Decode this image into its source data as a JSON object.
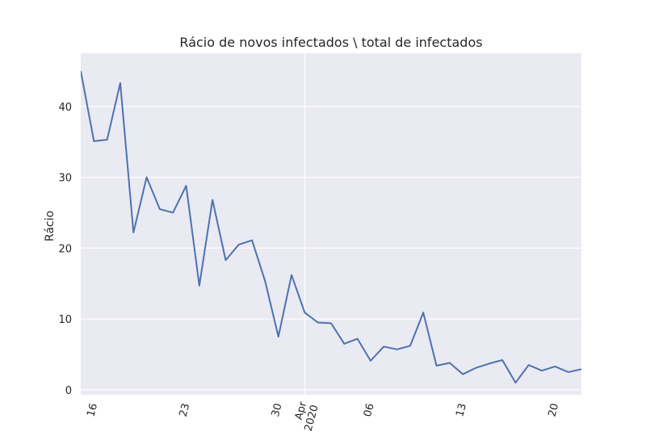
{
  "chart_data": {
    "type": "line",
    "title": "Rácio de novos infectados \\ total de infectados",
    "xlabel": "",
    "ylabel": "Rácio",
    "ylim": [
      -0.7,
      47.5
    ],
    "xlim": [
      "2020-03-15",
      "2020-04-22"
    ],
    "yticks": [
      0,
      10,
      20,
      30,
      40
    ],
    "xticks": [
      {
        "date": "2020-03-16",
        "label": "16"
      },
      {
        "date": "2020-03-23",
        "label": "23"
      },
      {
        "date": "2020-03-30",
        "label": "30"
      },
      {
        "date": "2020-04-01",
        "label": "Apr",
        "label2": "2020"
      },
      {
        "date": "2020-04-06",
        "label": "06"
      },
      {
        "date": "2020-04-13",
        "label": "13"
      },
      {
        "date": "2020-04-20",
        "label": "20"
      }
    ],
    "grid": true,
    "colors": {
      "background": "#eaeaf2",
      "grid": "#ffffff",
      "line": "#4c72b0"
    },
    "series": [
      {
        "name": "",
        "points": [
          {
            "x": "2020-03-15",
            "y": 45.0
          },
          {
            "x": "2020-03-16",
            "y": 35.1
          },
          {
            "x": "2020-03-17",
            "y": 35.3
          },
          {
            "x": "2020-03-18",
            "y": 43.3
          },
          {
            "x": "2020-03-19",
            "y": 22.2
          },
          {
            "x": "2020-03-20",
            "y": 30.0
          },
          {
            "x": "2020-03-21",
            "y": 25.5
          },
          {
            "x": "2020-03-22",
            "y": 25.0
          },
          {
            "x": "2020-03-23",
            "y": 28.8
          },
          {
            "x": "2020-03-24",
            "y": 14.7
          },
          {
            "x": "2020-03-25",
            "y": 26.8
          },
          {
            "x": "2020-03-26",
            "y": 18.3
          },
          {
            "x": "2020-03-27",
            "y": 20.5
          },
          {
            "x": "2020-03-28",
            "y": 21.1
          },
          {
            "x": "2020-03-29",
            "y": 15.3
          },
          {
            "x": "2020-03-30",
            "y": 7.5
          },
          {
            "x": "2020-03-31",
            "y": 16.2
          },
          {
            "x": "2020-04-01",
            "y": 10.9
          },
          {
            "x": "2020-04-02",
            "y": 9.5
          },
          {
            "x": "2020-04-03",
            "y": 9.4
          },
          {
            "x": "2020-04-04",
            "y": 6.5
          },
          {
            "x": "2020-04-05",
            "y": 7.2
          },
          {
            "x": "2020-04-06",
            "y": 4.1
          },
          {
            "x": "2020-04-07",
            "y": 6.1
          },
          {
            "x": "2020-04-08",
            "y": 5.7
          },
          {
            "x": "2020-04-09",
            "y": 6.2
          },
          {
            "x": "2020-04-10",
            "y": 10.9
          },
          {
            "x": "2020-04-11",
            "y": 3.4
          },
          {
            "x": "2020-04-12",
            "y": 3.8
          },
          {
            "x": "2020-04-13",
            "y": 2.2
          },
          {
            "x": "2020-04-14",
            "y": 3.1
          },
          {
            "x": "2020-04-15",
            "y": 3.7
          },
          {
            "x": "2020-04-16",
            "y": 4.2
          },
          {
            "x": "2020-04-17",
            "y": 1.0
          },
          {
            "x": "2020-04-18",
            "y": 3.5
          },
          {
            "x": "2020-04-19",
            "y": 2.7
          },
          {
            "x": "2020-04-20",
            "y": 3.3
          },
          {
            "x": "2020-04-21",
            "y": 2.5
          },
          {
            "x": "2020-04-22",
            "y": 2.9
          }
        ]
      }
    ]
  }
}
